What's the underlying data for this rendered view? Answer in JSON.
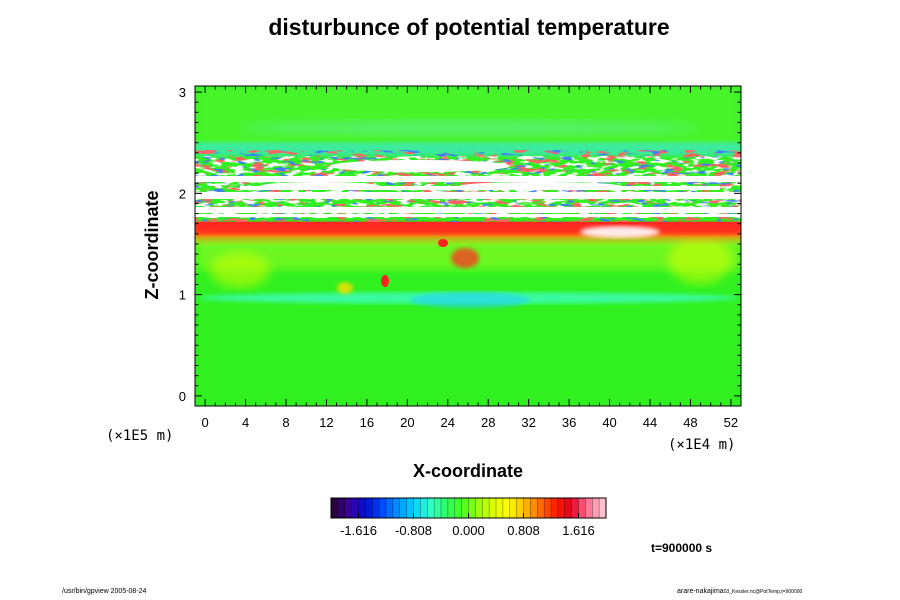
{
  "chart_data": {
    "type": "heatmap",
    "title": "disturbunce of potential temperature",
    "xlabel": "X-coordinate",
    "ylabel": "Z-coordinate",
    "x_scale_label": "(×1E4 m)",
    "y_scale_label": "(×1E5 m)",
    "x_ticks": [
      "0",
      "4",
      "8",
      "12",
      "16",
      "20",
      "24",
      "28",
      "32",
      "36",
      "40",
      "44",
      "48",
      "52"
    ],
    "y_ticks": [
      "0",
      "1",
      "2",
      "3"
    ],
    "xlim": [
      -1,
      53
    ],
    "ylim": [
      -0.1,
      3.06
    ],
    "colorbar": {
      "ticks": [
        "-1.616",
        "-0.808",
        "0.000",
        "0.808",
        "1.616"
      ],
      "range": [
        -2.02,
        2.02
      ],
      "colors": [
        "#2a0040",
        "#3a00a0",
        "#0010d0",
        "#0048ff",
        "#0090ff",
        "#00d0ff",
        "#30ffd0",
        "#30ff70",
        "#40ff20",
        "#90ff10",
        "#d8ff00",
        "#ffff00",
        "#ffc000",
        "#ff7000",
        "#ff2000",
        "#e00020",
        "#ff7090",
        "#ffc0d0"
      ]
    },
    "time_label": "t=900000 s",
    "colors": {
      "background_field": "#30f020",
      "warm_band": "#f03030",
      "saturated": "#ffffff",
      "cool_band": "#40e8e0"
    }
  },
  "footer": {
    "left": "/usr/bin/gpview 2005-08-24",
    "right_main": "arare-nakajima",
    "right_small": "03_Kessler.nc@PotTemp,t=900000"
  }
}
